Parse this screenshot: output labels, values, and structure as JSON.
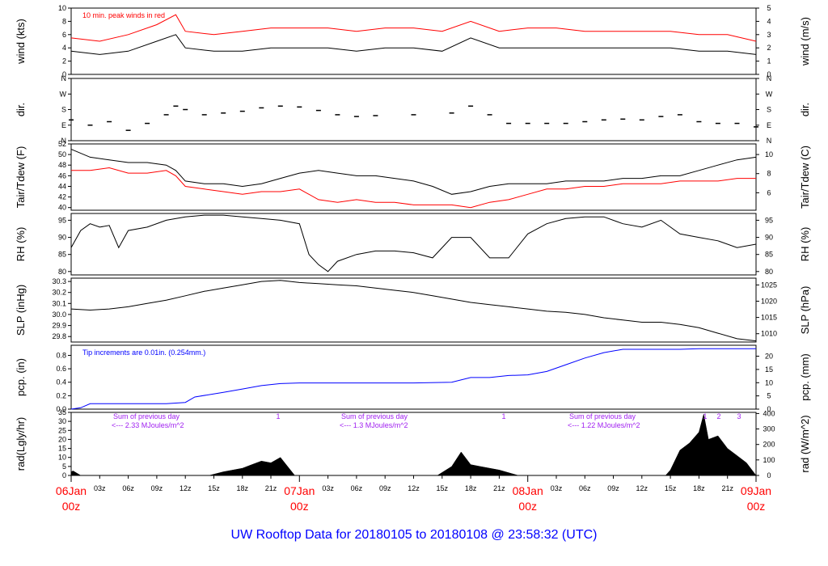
{
  "title": "UW Rooftop Data for 20180105  to  20180108 @ 23:58:32  (UTC)",
  "colors": {
    "black": "#000000",
    "red": "#ff0000",
    "blue": "#0000ff",
    "purple": "#a020f0"
  },
  "x_axis": {
    "hour_labels": [
      "03z",
      "06z",
      "09z",
      "12z",
      "15z",
      "18z",
      "21z",
      "03z",
      "06z",
      "09z",
      "12z",
      "15z",
      "18z",
      "21z",
      "03z",
      "06z",
      "09z",
      "12z",
      "15z",
      "18z",
      "21z"
    ],
    "day_labels": [
      {
        "date": "06Jan",
        "time": "00z"
      },
      {
        "date": "07Jan",
        "time": "00z"
      },
      {
        "date": "08Jan",
        "time": "00z"
      },
      {
        "date": "09Jan",
        "time": "00z"
      }
    ]
  },
  "chart_data": [
    {
      "type": "line",
      "id": "wind",
      "ylabel_left": "wind (kts)",
      "ylabel_right": "wind (m/s)",
      "ylim": [
        0,
        10
      ],
      "yticks": [
        0,
        2,
        4,
        6,
        8,
        10
      ],
      "right_ylim": [
        0,
        5
      ],
      "right_yticks": [
        0,
        1,
        2,
        3,
        4,
        5
      ],
      "annotation": "10 min. peak winds in red",
      "series": [
        {
          "color": "black",
          "x": [
            0,
            3,
            6,
            9,
            11,
            12,
            15,
            18,
            21,
            24,
            27,
            30,
            33,
            36,
            39,
            42,
            45,
            48,
            51,
            54,
            57,
            60,
            63,
            66,
            69,
            72
          ],
          "y": [
            3.5,
            3,
            3.5,
            5,
            6,
            4,
            3.5,
            3.5,
            4,
            4,
            4,
            3.5,
            4,
            4,
            3.5,
            5.5,
            4,
            4,
            4,
            4,
            4,
            4,
            4,
            3.5,
            3.5,
            3
          ]
        },
        {
          "color": "red",
          "x": [
            0,
            3,
            6,
            9,
            11,
            12,
            15,
            18,
            21,
            24,
            27,
            30,
            33,
            36,
            39,
            42,
            45,
            48,
            51,
            54,
            57,
            60,
            63,
            66,
            69,
            72
          ],
          "y": [
            5.5,
            5,
            6,
            7.5,
            9,
            6.5,
            6,
            6.5,
            7,
            7,
            7,
            6.5,
            7,
            7,
            6.5,
            8,
            6.5,
            7,
            7,
            6.5,
            6.5,
            6.5,
            6.5,
            6,
            6,
            5
          ]
        }
      ]
    },
    {
      "type": "scatter",
      "id": "dir",
      "ylabel_left": "dir.",
      "ylabel_right": "dir.",
      "ylim": [
        0,
        360
      ],
      "ytick_values": [
        0,
        90,
        180,
        270,
        360
      ],
      "ytick_labels": [
        "N",
        "E",
        "S",
        "W",
        "N"
      ],
      "series": [
        {
          "color": "black",
          "x": [
            0,
            2,
            4,
            6,
            8,
            10,
            11,
            12,
            14,
            16,
            18,
            20,
            22,
            24,
            26,
            28,
            30,
            32,
            36,
            40,
            42,
            44,
            46,
            48,
            50,
            52,
            54,
            56,
            58,
            60,
            62,
            64,
            66,
            68,
            70,
            72
          ],
          "y": [
            120,
            90,
            110,
            60,
            100,
            150,
            200,
            180,
            150,
            160,
            170,
            190,
            200,
            195,
            175,
            150,
            140,
            145,
            150,
            160,
            200,
            150,
            100,
            100,
            100,
            100,
            110,
            120,
            125,
            120,
            140,
            150,
            110,
            100,
            100,
            80
          ]
        }
      ]
    },
    {
      "type": "line",
      "id": "temp",
      "ylabel_left": "Tair/Tdew (F)",
      "ylabel_right": "Tair/Tdew (C)",
      "ylim": [
        39.5,
        52
      ],
      "yticks": [
        40,
        42,
        44,
        46,
        48,
        50,
        52
      ],
      "right_yticks": [
        6,
        8,
        10
      ],
      "series": [
        {
          "color": "black",
          "x": [
            0,
            2,
            4,
            6,
            8,
            10,
            11,
            12,
            14,
            16,
            18,
            20,
            22,
            24,
            26,
            28,
            30,
            32,
            34,
            36,
            38,
            40,
            42,
            44,
            46,
            48,
            50,
            52,
            54,
            56,
            58,
            60,
            62,
            64,
            66,
            68,
            70,
            72
          ],
          "y": [
            51,
            49.5,
            49,
            48.5,
            48.5,
            48,
            47,
            45,
            44.5,
            44.5,
            44,
            44.5,
            45.5,
            46.5,
            47,
            46.5,
            46,
            46,
            45.5,
            45,
            44,
            42.5,
            43,
            44,
            44.5,
            44.5,
            44.5,
            45,
            45,
            45,
            45.5,
            45.5,
            46,
            46,
            47,
            48,
            49,
            49.5
          ]
        },
        {
          "color": "red",
          "x": [
            0,
            2,
            4,
            6,
            8,
            10,
            11,
            12,
            14,
            16,
            18,
            20,
            22,
            24,
            26,
            28,
            30,
            32,
            34,
            36,
            38,
            40,
            42,
            44,
            46,
            48,
            50,
            52,
            54,
            56,
            58,
            60,
            62,
            64,
            66,
            68,
            70,
            72
          ],
          "y": [
            47,
            47,
            47.5,
            46.5,
            46.5,
            47,
            46,
            44,
            43.5,
            43,
            42.5,
            43,
            43,
            43.5,
            41.5,
            41,
            41.5,
            41,
            41,
            40.5,
            40.5,
            40.5,
            40,
            41,
            41.5,
            42.5,
            43.5,
            43.5,
            44,
            44,
            44.5,
            44.5,
            44.5,
            45,
            45,
            45,
            45.5,
            45.5
          ]
        }
      ]
    },
    {
      "type": "line",
      "id": "rh",
      "ylabel_left": "RH (%)",
      "ylabel_right": "RH (%)",
      "ylim": [
        79,
        97
      ],
      "yticks": [
        80,
        85,
        90,
        95
      ],
      "right_yticks": [
        80,
        85,
        90,
        95
      ],
      "series": [
        {
          "color": "black",
          "x": [
            0,
            1,
            2,
            3,
            4,
            5,
            6,
            8,
            10,
            12,
            14,
            16,
            18,
            20,
            22,
            24,
            25,
            26,
            27,
            28,
            30,
            32,
            34,
            36,
            38,
            40,
            42,
            44,
            46,
            48,
            50,
            52,
            54,
            56,
            58,
            60,
            62,
            64,
            66,
            68,
            70,
            72
          ],
          "y": [
            87,
            92,
            94,
            93,
            93.5,
            87,
            92,
            93,
            95,
            96,
            96.5,
            96.5,
            96,
            95.5,
            95,
            94,
            85,
            82,
            80,
            83,
            85,
            86,
            86,
            85.5,
            84,
            90,
            90,
            84,
            84,
            91,
            94,
            95.5,
            96,
            96,
            94,
            93,
            95,
            91,
            90,
            89,
            87,
            88
          ]
        }
      ]
    },
    {
      "type": "line",
      "id": "slp",
      "ylabel_left": "SLP (inHg)",
      "ylabel_right": "SLP (hPa)",
      "ylim": [
        29.75,
        30.33
      ],
      "yticks": [
        29.8,
        29.9,
        30.0,
        30.1,
        30.2,
        30.3
      ],
      "right_yticks": [
        1010,
        1015,
        1020,
        1025
      ],
      "series": [
        {
          "color": "black",
          "x": [
            0,
            2,
            4,
            6,
            8,
            10,
            12,
            14,
            16,
            18,
            20,
            22,
            24,
            26,
            28,
            30,
            32,
            34,
            36,
            38,
            40,
            42,
            44,
            46,
            48,
            50,
            52,
            54,
            56,
            58,
            60,
            62,
            64,
            66,
            68,
            70,
            72
          ],
          "y": [
            30.05,
            30.04,
            30.05,
            30.07,
            30.1,
            30.13,
            30.17,
            30.21,
            30.24,
            30.27,
            30.3,
            30.31,
            30.29,
            30.28,
            30.27,
            30.26,
            30.24,
            30.22,
            30.2,
            30.17,
            30.14,
            30.11,
            30.09,
            30.07,
            30.05,
            30.03,
            30.02,
            30.0,
            29.97,
            29.95,
            29.93,
            29.93,
            29.91,
            29.88,
            29.83,
            29.78,
            29.76
          ]
        }
      ]
    },
    {
      "type": "line",
      "id": "pcp",
      "ylabel_left": "pcp. (in)",
      "ylabel_right": "pcp. (mm)",
      "ylim": [
        0,
        0.95
      ],
      "yticks": [
        0.0,
        0.2,
        0.4,
        0.6,
        0.8
      ],
      "right_yticks": [
        0,
        5,
        10,
        15,
        20
      ],
      "annotation": "Tip increments are 0.01in. (0.254mm.)",
      "series": [
        {
          "color": "blue",
          "x": [
            0,
            1,
            2,
            4,
            6,
            8,
            10,
            12,
            13,
            16,
            18,
            20,
            22,
            24,
            30,
            36,
            40,
            42,
            44,
            46,
            48,
            50,
            52,
            54,
            56,
            58,
            60,
            64,
            66,
            72
          ],
          "y": [
            0,
            0.02,
            0.08,
            0.08,
            0.08,
            0.08,
            0.08,
            0.1,
            0.18,
            0.25,
            0.3,
            0.35,
            0.38,
            0.39,
            0.39,
            0.39,
            0.4,
            0.47,
            0.47,
            0.5,
            0.51,
            0.56,
            0.66,
            0.76,
            0.84,
            0.89,
            0.89,
            0.89,
            0.9,
            0.9
          ]
        }
      ]
    },
    {
      "type": "area",
      "id": "rad",
      "ylabel_left": "rad(Lgly/hr)",
      "ylabel_right": "rad (W/m^2)",
      "ylim": [
        0,
        35
      ],
      "yticks": [
        0,
        5,
        10,
        15,
        20,
        25,
        30,
        35
      ],
      "right_yticks": [
        0,
        100,
        200,
        300,
        400
      ],
      "sum_notes": [
        {
          "line1": "Sum of previous day",
          "line2": "<--- 2.33 MJoules/m^2"
        },
        {
          "line1": "Sum of previous day",
          "line2": "<--- 1.3 MJoules/m^2"
        },
        {
          "line1": "Sum of previous day",
          "line2": "<--- 1.22 MJoules/m^2"
        }
      ],
      "peak_marks": [
        "1",
        "1",
        "1",
        "2",
        "3"
      ],
      "series": [
        {
          "color": "black",
          "x": [
            0,
            0.2,
            1,
            14.5,
            16,
            18,
            19,
            20,
            21,
            22,
            23.5,
            38.5,
            40,
            41,
            42,
            43,
            44,
            45,
            47,
            62.5,
            63,
            64,
            65,
            66,
            66.5,
            67,
            68,
            69,
            70,
            71,
            72
          ],
          "y": [
            2,
            2.5,
            0,
            0,
            2,
            4,
            6,
            8,
            7,
            10,
            0,
            0,
            5,
            13,
            6,
            5,
            4,
            3,
            0,
            0,
            3,
            14,
            18,
            24,
            34,
            20,
            22,
            15,
            11,
            7,
            0
          ]
        }
      ]
    }
  ]
}
